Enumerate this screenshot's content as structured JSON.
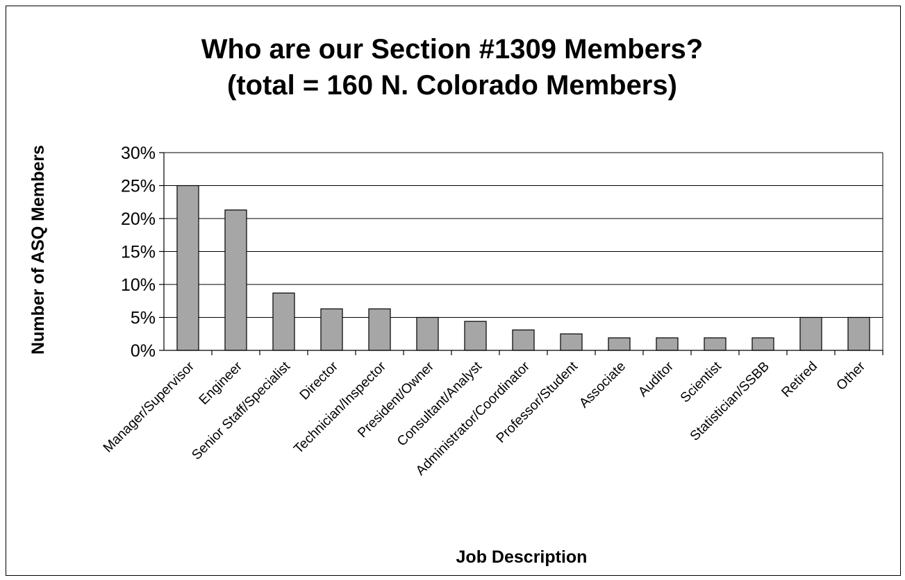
{
  "chart_data": {
    "type": "bar",
    "title": [
      "Who are our Section #1309 Members?",
      "(total = 160 N. Colorado Members)"
    ],
    "xlabel": "Job Description",
    "ylabel": "Number of ASQ Members",
    "categories": [
      "Manager/Supervisor",
      "Engineer",
      "Senior Staff/Specialist",
      "Director",
      "Technician/Inspector",
      "President/Owner",
      "Consultant/Analyst",
      "Administrator/Coordinator",
      "Professor/Student",
      "Associate",
      "Auditor",
      "Scientist",
      "Statistician/SSBB",
      "Retired",
      "Other"
    ],
    "values": [
      25.0,
      21.3,
      8.7,
      6.3,
      6.3,
      5.0,
      4.4,
      3.1,
      2.5,
      1.9,
      1.9,
      1.9,
      1.9,
      5.0,
      5.0
    ],
    "ylim": [
      0,
      30
    ],
    "yticks": [
      "0%",
      "5%",
      "10%",
      "15%",
      "20%",
      "25%",
      "30%"
    ],
    "grid": true,
    "legend": "none",
    "colors": {
      "bar": "#a6a6a6",
      "bar_stroke": "#000000",
      "grid": "#000000"
    }
  }
}
